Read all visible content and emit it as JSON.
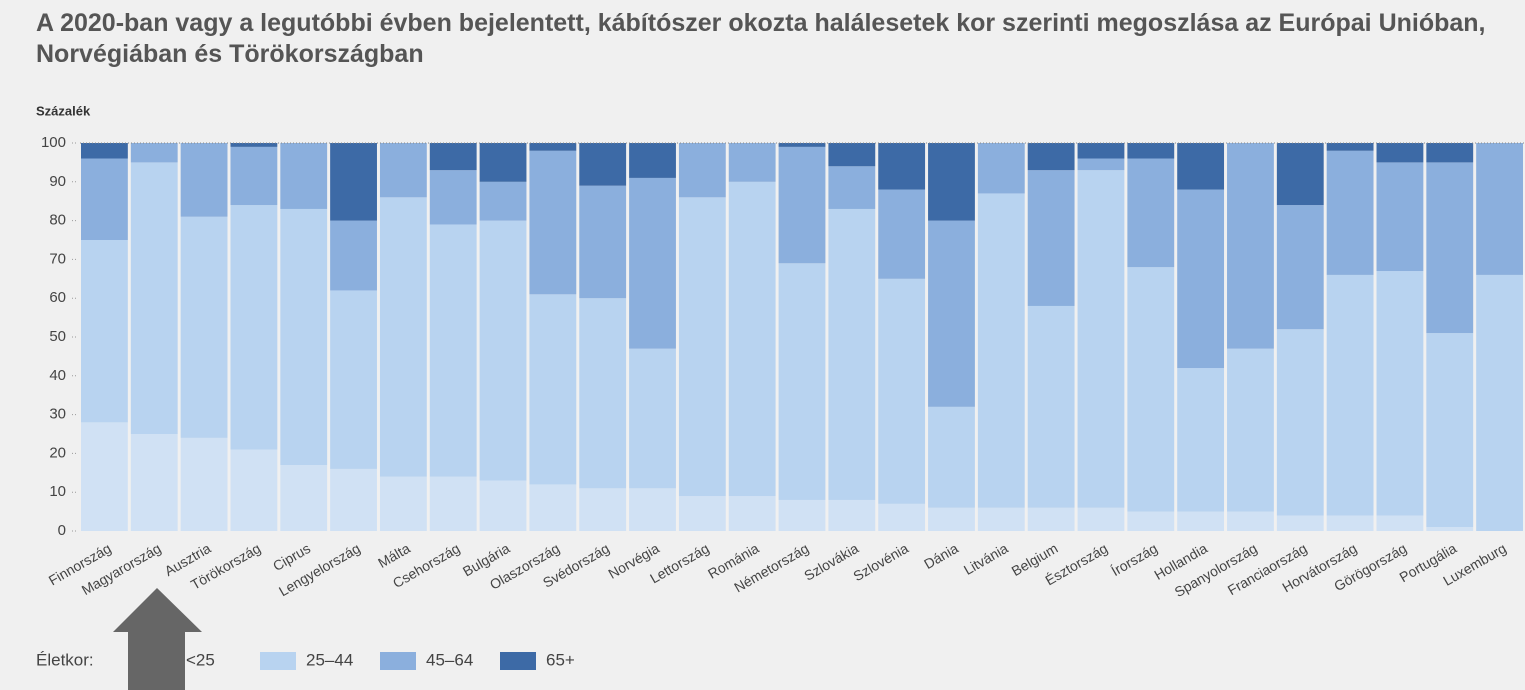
{
  "chart_data": {
    "type": "stacked_bar",
    "title": "A 2020-ban vagy a legutóbbi évben bejelentett, kábítószer okozta halálesetek kor szerinti megoszlása az Európai Unióban, Norvégiában és Törökországban",
    "y_label": "Százalék",
    "legend_title": "Életkor:",
    "categories": [
      "Finnország",
      "Magyarország",
      "Ausztria",
      "Törökország",
      "Ciprus",
      "Lengyelország",
      "Málta",
      "Csehország",
      "Bulgária",
      "Olaszország",
      "Svédország",
      "Norvégia",
      "Lettország",
      "Románia",
      "Németország",
      "Szlovákia",
      "Szlovénia",
      "Dánia",
      "Litvánia",
      "Belgium",
      "Észtország",
      "Írország",
      "Hollandia",
      "Spanyolország",
      "Franciaország",
      "Horvátország",
      "Görögország",
      "Portugália",
      "Luxemburg"
    ],
    "series": [
      {
        "name": "<25",
        "color": "#d0e1f4",
        "values": [
          28,
          25,
          24,
          21,
          17,
          16,
          14,
          14,
          13,
          12,
          11,
          11,
          9,
          9,
          8,
          8,
          7,
          6,
          6,
          6,
          6,
          5,
          5,
          5,
          4,
          4,
          4,
          1,
          0
        ]
      },
      {
        "name": "25–44",
        "color": "#b8d3f0",
        "values": [
          47,
          70,
          57,
          63,
          66,
          46,
          72,
          65,
          67,
          49,
          49,
          36,
          77,
          81,
          61,
          75,
          58,
          26,
          81,
          52,
          87,
          63,
          37,
          42,
          48,
          62,
          63,
          50,
          66
        ]
      },
      {
        "name": "45–64",
        "color": "#8bafdd",
        "values": [
          21,
          5,
          19,
          15,
          17,
          18,
          14,
          14,
          10,
          37,
          29,
          44,
          14,
          10,
          30,
          11,
          23,
          48,
          13,
          35,
          3,
          28,
          46,
          53,
          32,
          32,
          28,
          44,
          34
        ]
      },
      {
        "name": "65+",
        "color": "#3d6aa6",
        "values": [
          4,
          0,
          0,
          1,
          0,
          20,
          0,
          7,
          10,
          2,
          11,
          9,
          0,
          0,
          1,
          6,
          12,
          20,
          0,
          7,
          4,
          4,
          12,
          0,
          16,
          2,
          5,
          5,
          0
        ]
      }
    ],
    "ylim": [
      0,
      100
    ],
    "yticks": [
      0,
      10,
      20,
      30,
      40,
      50,
      60,
      70,
      80,
      90,
      100
    ],
    "stacked": true
  }
}
